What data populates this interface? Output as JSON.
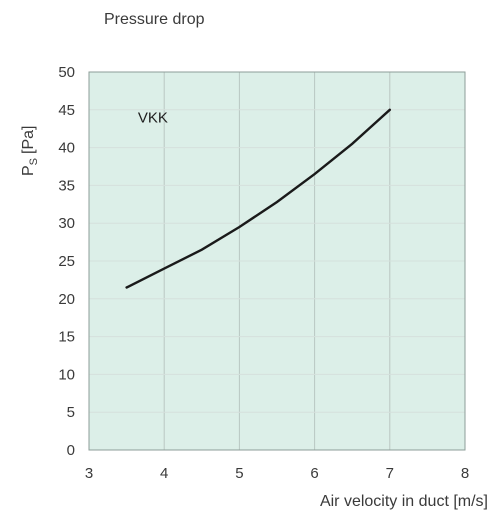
{
  "chart_data": {
    "type": "line",
    "title": "Pressure drop",
    "ylabel_main": "P",
    "ylabel_sub": "S",
    "ylabel_unit": "[Pa]",
    "xlabel": "Air velocity in duct [m/s]",
    "xlim": [
      3,
      8
    ],
    "ylim": [
      0,
      50
    ],
    "xticks": [
      3,
      4,
      5,
      6,
      7,
      8
    ],
    "yticks": [
      0,
      5,
      10,
      15,
      20,
      25,
      30,
      35,
      40,
      45,
      50
    ],
    "grid": "vertical-major",
    "series": [
      {
        "name": "VKK",
        "x": [
          3.5,
          4,
          4.5,
          5,
          5.5,
          6,
          6.5,
          7
        ],
        "y": [
          21.5,
          24,
          26.5,
          29.5,
          32.8,
          36.5,
          40.5,
          45
        ]
      }
    ]
  },
  "colors": {
    "plot_background": "#dcefe8",
    "curve": "#1a1a1a"
  }
}
